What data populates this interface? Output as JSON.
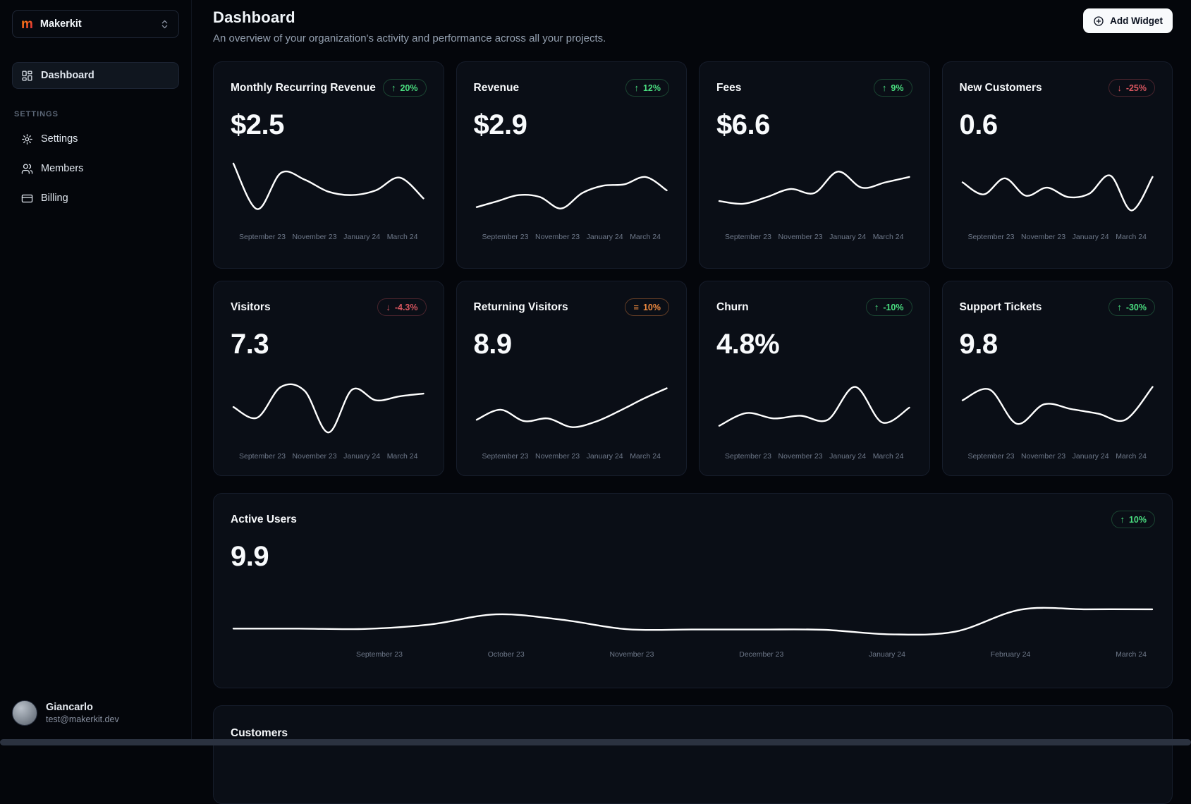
{
  "sidebar": {
    "workspace": {
      "name": "Makerkit",
      "logo_letter": "m"
    },
    "nav": [
      {
        "label": "Dashboard"
      }
    ],
    "section_label": "SETTINGS",
    "settings_nav": [
      {
        "label": "Settings"
      },
      {
        "label": "Members"
      },
      {
        "label": "Billing"
      }
    ],
    "user": {
      "name": "Giancarlo",
      "email": "test@makerkit.dev"
    }
  },
  "header": {
    "title": "Dashboard",
    "subtitle": "An overview of your organization's activity and performance across all your projects.",
    "add_widget_label": "Add Widget"
  },
  "sections": {
    "customers_title": "Customers"
  },
  "colors": {
    "page_bg": "#04060b",
    "card_bg": "#0a0e16",
    "line": "#ffffff",
    "accent_green": "#4ade80",
    "accent_red": "#d8565f",
    "accent_orange": "#ef8a3f"
  },
  "chart_data": [
    {
      "type": "line",
      "title": "Monthly Recurring Revenue",
      "value": "$2.5",
      "badge": {
        "label": "20%",
        "trend": "up",
        "color": "green"
      },
      "categories": [
        "September 23",
        "November 23",
        "January 24",
        "March 24"
      ],
      "values": [
        8.8,
        2.0,
        7.4,
        6.4,
        4.6,
        4.1,
        4.8,
        6.7,
        3.6
      ],
      "ylim": [
        0,
        10
      ],
      "grid": false,
      "legend": "none"
    },
    {
      "type": "line",
      "title": "Revenue",
      "value": "$2.9",
      "badge": {
        "label": "12%",
        "trend": "up",
        "color": "green"
      },
      "categories": [
        "September 23",
        "November 23",
        "January 24",
        "March 24"
      ],
      "values": [
        2.3,
        3.2,
        4.1,
        3.8,
        2.1,
        4.4,
        5.5,
        5.7,
        6.8,
        4.8
      ],
      "ylim": [
        0,
        10
      ],
      "grid": false,
      "legend": "none"
    },
    {
      "type": "line",
      "title": "Fees",
      "value": "$6.6",
      "badge": {
        "label": "9%",
        "trend": "up",
        "color": "green"
      },
      "categories": [
        "September 23",
        "November 23",
        "January 24",
        "March 24"
      ],
      "values": [
        3.2,
        2.8,
        3.8,
        5.0,
        4.4,
        7.6,
        5.2,
        6.0,
        6.8
      ],
      "ylim": [
        0,
        10
      ],
      "grid": false,
      "legend": "none"
    },
    {
      "type": "line",
      "title": "New Customers",
      "value": "0.6",
      "badge": {
        "label": "-25%",
        "trend": "down",
        "color": "red"
      },
      "categories": [
        "September 23",
        "November 23",
        "January 24",
        "March 24"
      ],
      "values": [
        6.0,
        4.2,
        6.6,
        4.0,
        5.2,
        3.8,
        4.3,
        7.0,
        1.8,
        6.8
      ],
      "ylim": [
        0,
        10
      ],
      "grid": false,
      "legend": "none"
    },
    {
      "type": "line",
      "title": "Visitors",
      "value": "7.3",
      "badge": {
        "label": "-4.3%",
        "trend": "down",
        "color": "red"
      },
      "categories": [
        "September 23",
        "November 23",
        "January 24",
        "March 24"
      ],
      "values": [
        5.2,
        3.6,
        8.2,
        7.6,
        1.4,
        7.8,
        6.2,
        6.8,
        7.2
      ],
      "ylim": [
        0,
        10
      ],
      "grid": false,
      "legend": "none"
    },
    {
      "type": "line",
      "title": "Returning Visitors",
      "value": "8.9",
      "badge": {
        "label": "10%",
        "trend": "flat",
        "color": "orange"
      },
      "categories": [
        "September 23",
        "November 23",
        "January 24",
        "March 24"
      ],
      "values": [
        3.3,
        4.8,
        3.1,
        3.5,
        2.2,
        3.0,
        4.6,
        6.4,
        8.0
      ],
      "ylim": [
        0,
        10
      ],
      "grid": false,
      "legend": "none"
    },
    {
      "type": "line",
      "title": "Churn",
      "value": "4.8%",
      "badge": {
        "label": "-10%",
        "trend": "up",
        "color": "green"
      },
      "categories": [
        "September 23",
        "November 23",
        "January 24",
        "March 24"
      ],
      "values": [
        2.4,
        4.3,
        3.5,
        3.9,
        3.3,
        8.2,
        2.9,
        5.1
      ],
      "ylim": [
        0,
        10
      ],
      "grid": false,
      "legend": "none"
    },
    {
      "type": "line",
      "title": "Support Tickets",
      "value": "9.8",
      "badge": {
        "label": "-30%",
        "trend": "up",
        "color": "green"
      },
      "categories": [
        "September 23",
        "November 23",
        "January 24",
        "March 24"
      ],
      "values": [
        6.2,
        7.8,
        2.7,
        5.6,
        4.9,
        4.2,
        3.3,
        8.2
      ],
      "ylim": [
        0,
        10
      ],
      "grid": false,
      "legend": "none"
    },
    {
      "type": "line",
      "title": "Active Users",
      "value": "9.9",
      "badge": {
        "label": "10%",
        "trend": "up",
        "color": "green"
      },
      "categories": [
        "September 23",
        "October 23",
        "November 23",
        "December 23",
        "January 24",
        "February 24",
        "March 24"
      ],
      "values": [
        2.0,
        2.0,
        1.95,
        2.7,
        4.4,
        3.5,
        1.9,
        1.85,
        1.85,
        1.8,
        1.05,
        1.5,
        5.2,
        5.25,
        5.25
      ],
      "ylim": [
        0,
        10
      ],
      "grid": false,
      "legend": "none"
    }
  ]
}
